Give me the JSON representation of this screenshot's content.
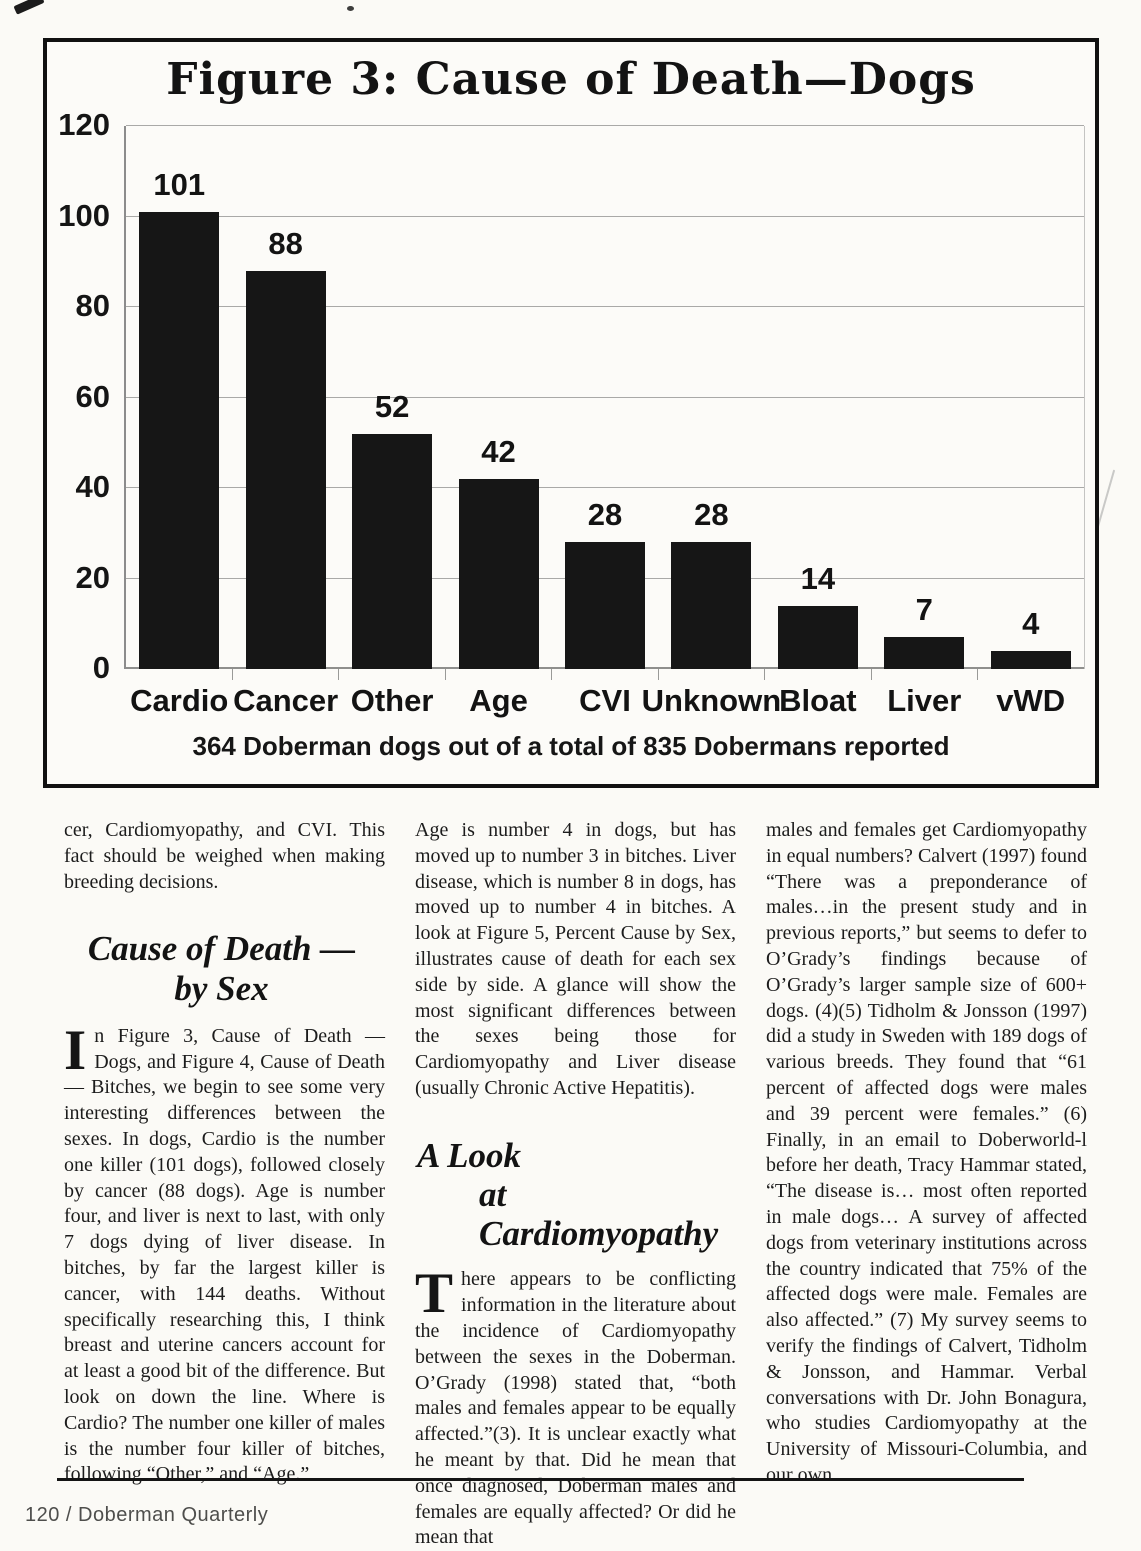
{
  "figure": {
    "title": "Figure 3: Cause of Death—Dogs",
    "caption": "364 Doberman dogs out of a total of 835 Dobermans reported"
  },
  "chart_data": {
    "type": "bar",
    "title": "Figure 3: Cause of Death—Dogs",
    "categories": [
      "Cardio",
      "Cancer",
      "Other",
      "Age",
      "CVI",
      "Unknown",
      "Bloat",
      "Liver",
      "vWD"
    ],
    "values": [
      101,
      88,
      52,
      42,
      28,
      28,
      14,
      7,
      4
    ],
    "xlabel": "",
    "ylabel": "",
    "ylim": [
      0,
      120
    ],
    "yticks": [
      0,
      20,
      40,
      60,
      80,
      100,
      120
    ],
    "grid": true,
    "legend_position": "none",
    "bar_color": "#161616",
    "value_labels": true,
    "caption": "364 Doberman dogs out of a total of 835 Dobermans reported"
  },
  "article": {
    "column1": {
      "continuation": "cer, Cardiomyopathy, and CVI. This fact should be weighed when making breeding decisions.",
      "heading": {
        "line1": "Cause of Death —",
        "line2": "by Sex"
      },
      "dropcap": "I",
      "body": "n Figure 3, Cause of Death — Dogs, and Figure 4, Cause of Death — Bitches, we begin to see some very interesting differences between the sexes. In dogs, Cardio is the number one killer (101 dogs), followed closely by cancer (88 dogs). Age is number four, and liver is next to last, with only 7 dogs dying of liver disease. In bitches, by far the largest killer is cancer, with 144 deaths. Without specifically researching this, I think breast and uterine cancers account for at least a good bit of the difference. But look on down the line. Where is Cardio? The number one killer of males is the number four killer of bitches, following “Other,” and “Age.”"
    },
    "column2": {
      "para1": "Age is number 4 in dogs, but has moved up to number 3 in bitches. Liver disease, which is number 8 in dogs, has moved up to number 4 in bitches. A look at Figure 5, Percent Cause by Sex, illustrates cause of death for each sex side by side. A glance will show the most significant differences between the sexes being those for Cardiomyopathy and Liver disease (usually Chronic Active Hepatitis).",
      "heading": {
        "line1": "A Look",
        "line2": "at Cardiomyopathy"
      },
      "dropcap": "T",
      "body": "here appears to be conflicting information in the literature about the incidence of Cardiomyopathy between the sexes in the Doberman. O’Grady (1998) stated that, “both males and females appear to be equally affected.”(3). It is unclear exactly what he meant by that. Did he mean that once diagnosed, Doberman males and females are equally affected? Or did he mean that"
    },
    "column3": {
      "para1": "males and females get Cardiomyopathy in equal numbers?  Calvert (1997) found  “There was a preponderance of males…in the present study and in previous reports,” but seems to defer to O’Grady’s findings because of O’Grady’s larger sample size of 600+ dogs. (4)(5)  Tidholm & Jonsson (1997) did a study in Sweden with 189 dogs of various breeds. They found that “61 percent of affected dogs were males and 39 percent were females.” (6)  Finally, in an email to Doberworld-l before her death, Tracy Hammar stated, “The disease is… most often reported in male dogs… A survey of affected dogs from veterinary institutions across the country indicated that 75% of the affected dogs were male. Females are also affected.” (7)   My survey seems to verify the findings of Calvert, Tidholm & Jonsson, and Hammar. Verbal conversations with Dr. John Bonagura, who studies Cardiomyopathy at the University of Missouri-Columbia, and our own"
    }
  },
  "footer": {
    "text": "120 / Doberman Quarterly"
  }
}
